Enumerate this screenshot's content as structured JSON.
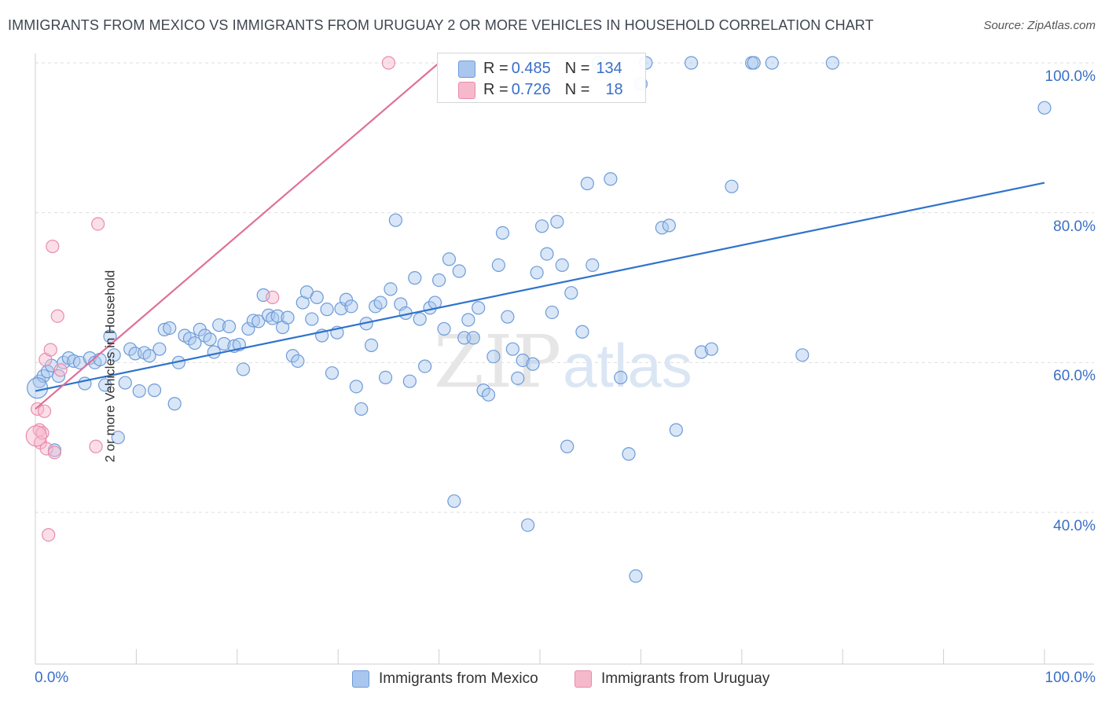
{
  "title": "IMMIGRANTS FROM MEXICO VS IMMIGRANTS FROM URUGUAY 2 OR MORE VEHICLES IN HOUSEHOLD CORRELATION CHART",
  "source": "Source: ZipAtlas.com",
  "watermark": {
    "part1": "ZIP",
    "part2": "atlas"
  },
  "colors": {
    "mexico_fill": "#a9c7ee",
    "mexico_stroke": "#6e9bd8",
    "mexico_line": "#2f73cc",
    "uruguay_fill": "#f6b9cb",
    "uruguay_stroke": "#e98cab",
    "uruguay_line": "#e0709a",
    "tick_label": "#3a6fc7",
    "grid": "#dddddd"
  },
  "legend": {
    "rows": [
      {
        "r_label": "R = ",
        "r_value": "0.485",
        "n_label": "N = ",
        "n_value": "134"
      },
      {
        "r_label": "R = ",
        "r_value": "0.726",
        "n_label": "N = ",
        "n_value": "18"
      }
    ]
  },
  "chart_data": {
    "type": "scatter",
    "title": "IMMIGRANTS FROM MEXICO VS IMMIGRANTS FROM URUGUAY 2 OR MORE VEHICLES IN HOUSEHOLD CORRELATION CHART",
    "xlabel": "",
    "ylabel": "2 or more Vehicles in Household",
    "xlim": [
      0,
      100
    ],
    "ylim": [
      20,
      102
    ],
    "x_tick_labels": [
      "0.0%",
      "100.0%"
    ],
    "y_ticks": [
      {
        "value": 40,
        "label": "40.0%"
      },
      {
        "value": 60,
        "label": "60.0%"
      },
      {
        "value": 80,
        "label": "80.0%"
      },
      {
        "value": 100,
        "label": "100.0%"
      }
    ],
    "grid": true,
    "legend_position": "bottom",
    "series": [
      {
        "name": "Immigrants from Mexico",
        "color": "#a9c7ee",
        "trend": {
          "x": [
            0,
            100
          ],
          "y": [
            56.2,
            84.0
          ]
        },
        "points": [
          [
            0.4,
            57.5
          ],
          [
            0.8,
            58.2
          ],
          [
            1.2,
            58.8
          ],
          [
            1.6,
            59.6
          ],
          [
            1.9,
            48.3
          ],
          [
            2.3,
            58.2
          ],
          [
            2.8,
            60.0
          ],
          [
            3.3,
            60.6
          ],
          [
            3.8,
            60.2
          ],
          [
            4.4,
            60.0
          ],
          [
            4.9,
            57.2
          ],
          [
            5.4,
            60.6
          ],
          [
            5.9,
            60.0
          ],
          [
            6.4,
            60.4
          ],
          [
            6.9,
            57.0
          ],
          [
            7.4,
            63.5
          ],
          [
            7.8,
            61.0
          ],
          [
            8.2,
            50.0
          ],
          [
            8.9,
            57.3
          ],
          [
            9.4,
            61.8
          ],
          [
            9.9,
            61.2
          ],
          [
            10.3,
            56.2
          ],
          [
            10.8,
            61.3
          ],
          [
            11.3,
            60.9
          ],
          [
            11.8,
            56.3
          ],
          [
            12.3,
            61.8
          ],
          [
            12.8,
            64.4
          ],
          [
            13.3,
            64.6
          ],
          [
            13.8,
            54.5
          ],
          [
            14.2,
            60.0
          ],
          [
            14.8,
            63.6
          ],
          [
            15.3,
            63.2
          ],
          [
            15.8,
            62.6
          ],
          [
            16.3,
            64.4
          ],
          [
            16.8,
            63.6
          ],
          [
            17.3,
            63.1
          ],
          [
            17.7,
            61.4
          ],
          [
            18.2,
            65.0
          ],
          [
            18.7,
            62.5
          ],
          [
            19.2,
            64.8
          ],
          [
            19.7,
            62.2
          ],
          [
            20.2,
            62.4
          ],
          [
            20.6,
            59.1
          ],
          [
            21.1,
            64.5
          ],
          [
            21.6,
            65.6
          ],
          [
            22.1,
            65.5
          ],
          [
            22.6,
            69.0
          ],
          [
            23.1,
            66.3
          ],
          [
            23.5,
            65.9
          ],
          [
            24.0,
            66.2
          ],
          [
            24.5,
            64.7
          ],
          [
            25.0,
            66.0
          ],
          [
            25.5,
            60.9
          ],
          [
            26.0,
            60.2
          ],
          [
            26.5,
            68.0
          ],
          [
            26.9,
            69.4
          ],
          [
            27.4,
            65.8
          ],
          [
            27.9,
            68.7
          ],
          [
            28.4,
            63.6
          ],
          [
            28.9,
            67.1
          ],
          [
            29.4,
            58.6
          ],
          [
            29.9,
            64.0
          ],
          [
            30.3,
            67.2
          ],
          [
            30.8,
            68.4
          ],
          [
            31.3,
            67.5
          ],
          [
            31.8,
            56.8
          ],
          [
            32.3,
            53.8
          ],
          [
            32.8,
            65.2
          ],
          [
            33.3,
            62.3
          ],
          [
            33.7,
            67.5
          ],
          [
            34.2,
            68.0
          ],
          [
            34.7,
            58.0
          ],
          [
            35.2,
            69.8
          ],
          [
            35.7,
            79.0
          ],
          [
            36.2,
            67.8
          ],
          [
            36.7,
            66.6
          ],
          [
            37.1,
            57.5
          ],
          [
            37.6,
            71.3
          ],
          [
            38.1,
            65.8
          ],
          [
            38.6,
            59.5
          ],
          [
            39.1,
            67.3
          ],
          [
            39.6,
            68.0
          ],
          [
            40.0,
            71.0
          ],
          [
            40.5,
            64.5
          ],
          [
            41.0,
            73.8
          ],
          [
            41.5,
            41.5
          ],
          [
            42.0,
            72.2
          ],
          [
            42.5,
            63.3
          ],
          [
            42.9,
            65.7
          ],
          [
            43.4,
            63.3
          ],
          [
            43.9,
            67.3
          ],
          [
            44.4,
            56.3
          ],
          [
            44.9,
            55.7
          ],
          [
            45.4,
            60.8
          ],
          [
            45.9,
            73.0
          ],
          [
            46.3,
            77.3
          ],
          [
            46.8,
            66.1
          ],
          [
            47.3,
            61.8
          ],
          [
            47.8,
            57.9
          ],
          [
            48.3,
            60.3
          ],
          [
            48.8,
            38.3
          ],
          [
            49.3,
            59.8
          ],
          [
            49.7,
            72.0
          ],
          [
            50.2,
            78.2
          ],
          [
            50.7,
            74.5
          ],
          [
            51.2,
            66.7
          ],
          [
            51.7,
            78.8
          ],
          [
            52.2,
            73.0
          ],
          [
            52.7,
            48.8
          ],
          [
            53.1,
            69.3
          ],
          [
            54.2,
            64.1
          ],
          [
            54.7,
            83.9
          ],
          [
            55.2,
            73.0
          ],
          [
            55.8,
            100.0
          ],
          [
            57.0,
            84.5
          ],
          [
            58.0,
            58.0
          ],
          [
            58.8,
            47.8
          ],
          [
            59.5,
            31.5
          ],
          [
            60.0,
            97.2
          ],
          [
            60.5,
            100.0
          ],
          [
            62.1,
            78.0
          ],
          [
            62.8,
            78.3
          ],
          [
            63.5,
            51.0
          ],
          [
            65.0,
            100.0
          ],
          [
            66.0,
            61.4
          ],
          [
            67.0,
            61.8
          ],
          [
            69.0,
            83.5
          ],
          [
            71.0,
            100.0
          ],
          [
            71.2,
            100.0
          ],
          [
            73.0,
            100.0
          ],
          [
            76.0,
            61.0
          ],
          [
            79.0,
            100.0
          ],
          [
            100.0,
            94.0
          ],
          [
            0.2,
            56.6
          ]
        ]
      },
      {
        "name": "Immigrants from Uruguay",
        "color": "#f6b9cb",
        "trend": {
          "x": [
            0,
            40
          ],
          "y": [
            53.8,
            100.0
          ]
        },
        "points": [
          [
            0.2,
            53.8
          ],
          [
            0.4,
            51.0
          ],
          [
            0.5,
            49.3
          ],
          [
            0.7,
            50.6
          ],
          [
            0.9,
            53.5
          ],
          [
            1.0,
            60.4
          ],
          [
            1.1,
            48.5
          ],
          [
            1.3,
            37.0
          ],
          [
            1.5,
            61.7
          ],
          [
            1.7,
            75.5
          ],
          [
            1.9,
            48.0
          ],
          [
            2.2,
            66.2
          ],
          [
            2.5,
            59.0
          ],
          [
            6.0,
            48.8
          ],
          [
            6.2,
            78.5
          ],
          [
            23.5,
            68.7
          ],
          [
            35.0,
            100.0
          ],
          [
            0.1,
            50.2
          ]
        ]
      }
    ]
  }
}
